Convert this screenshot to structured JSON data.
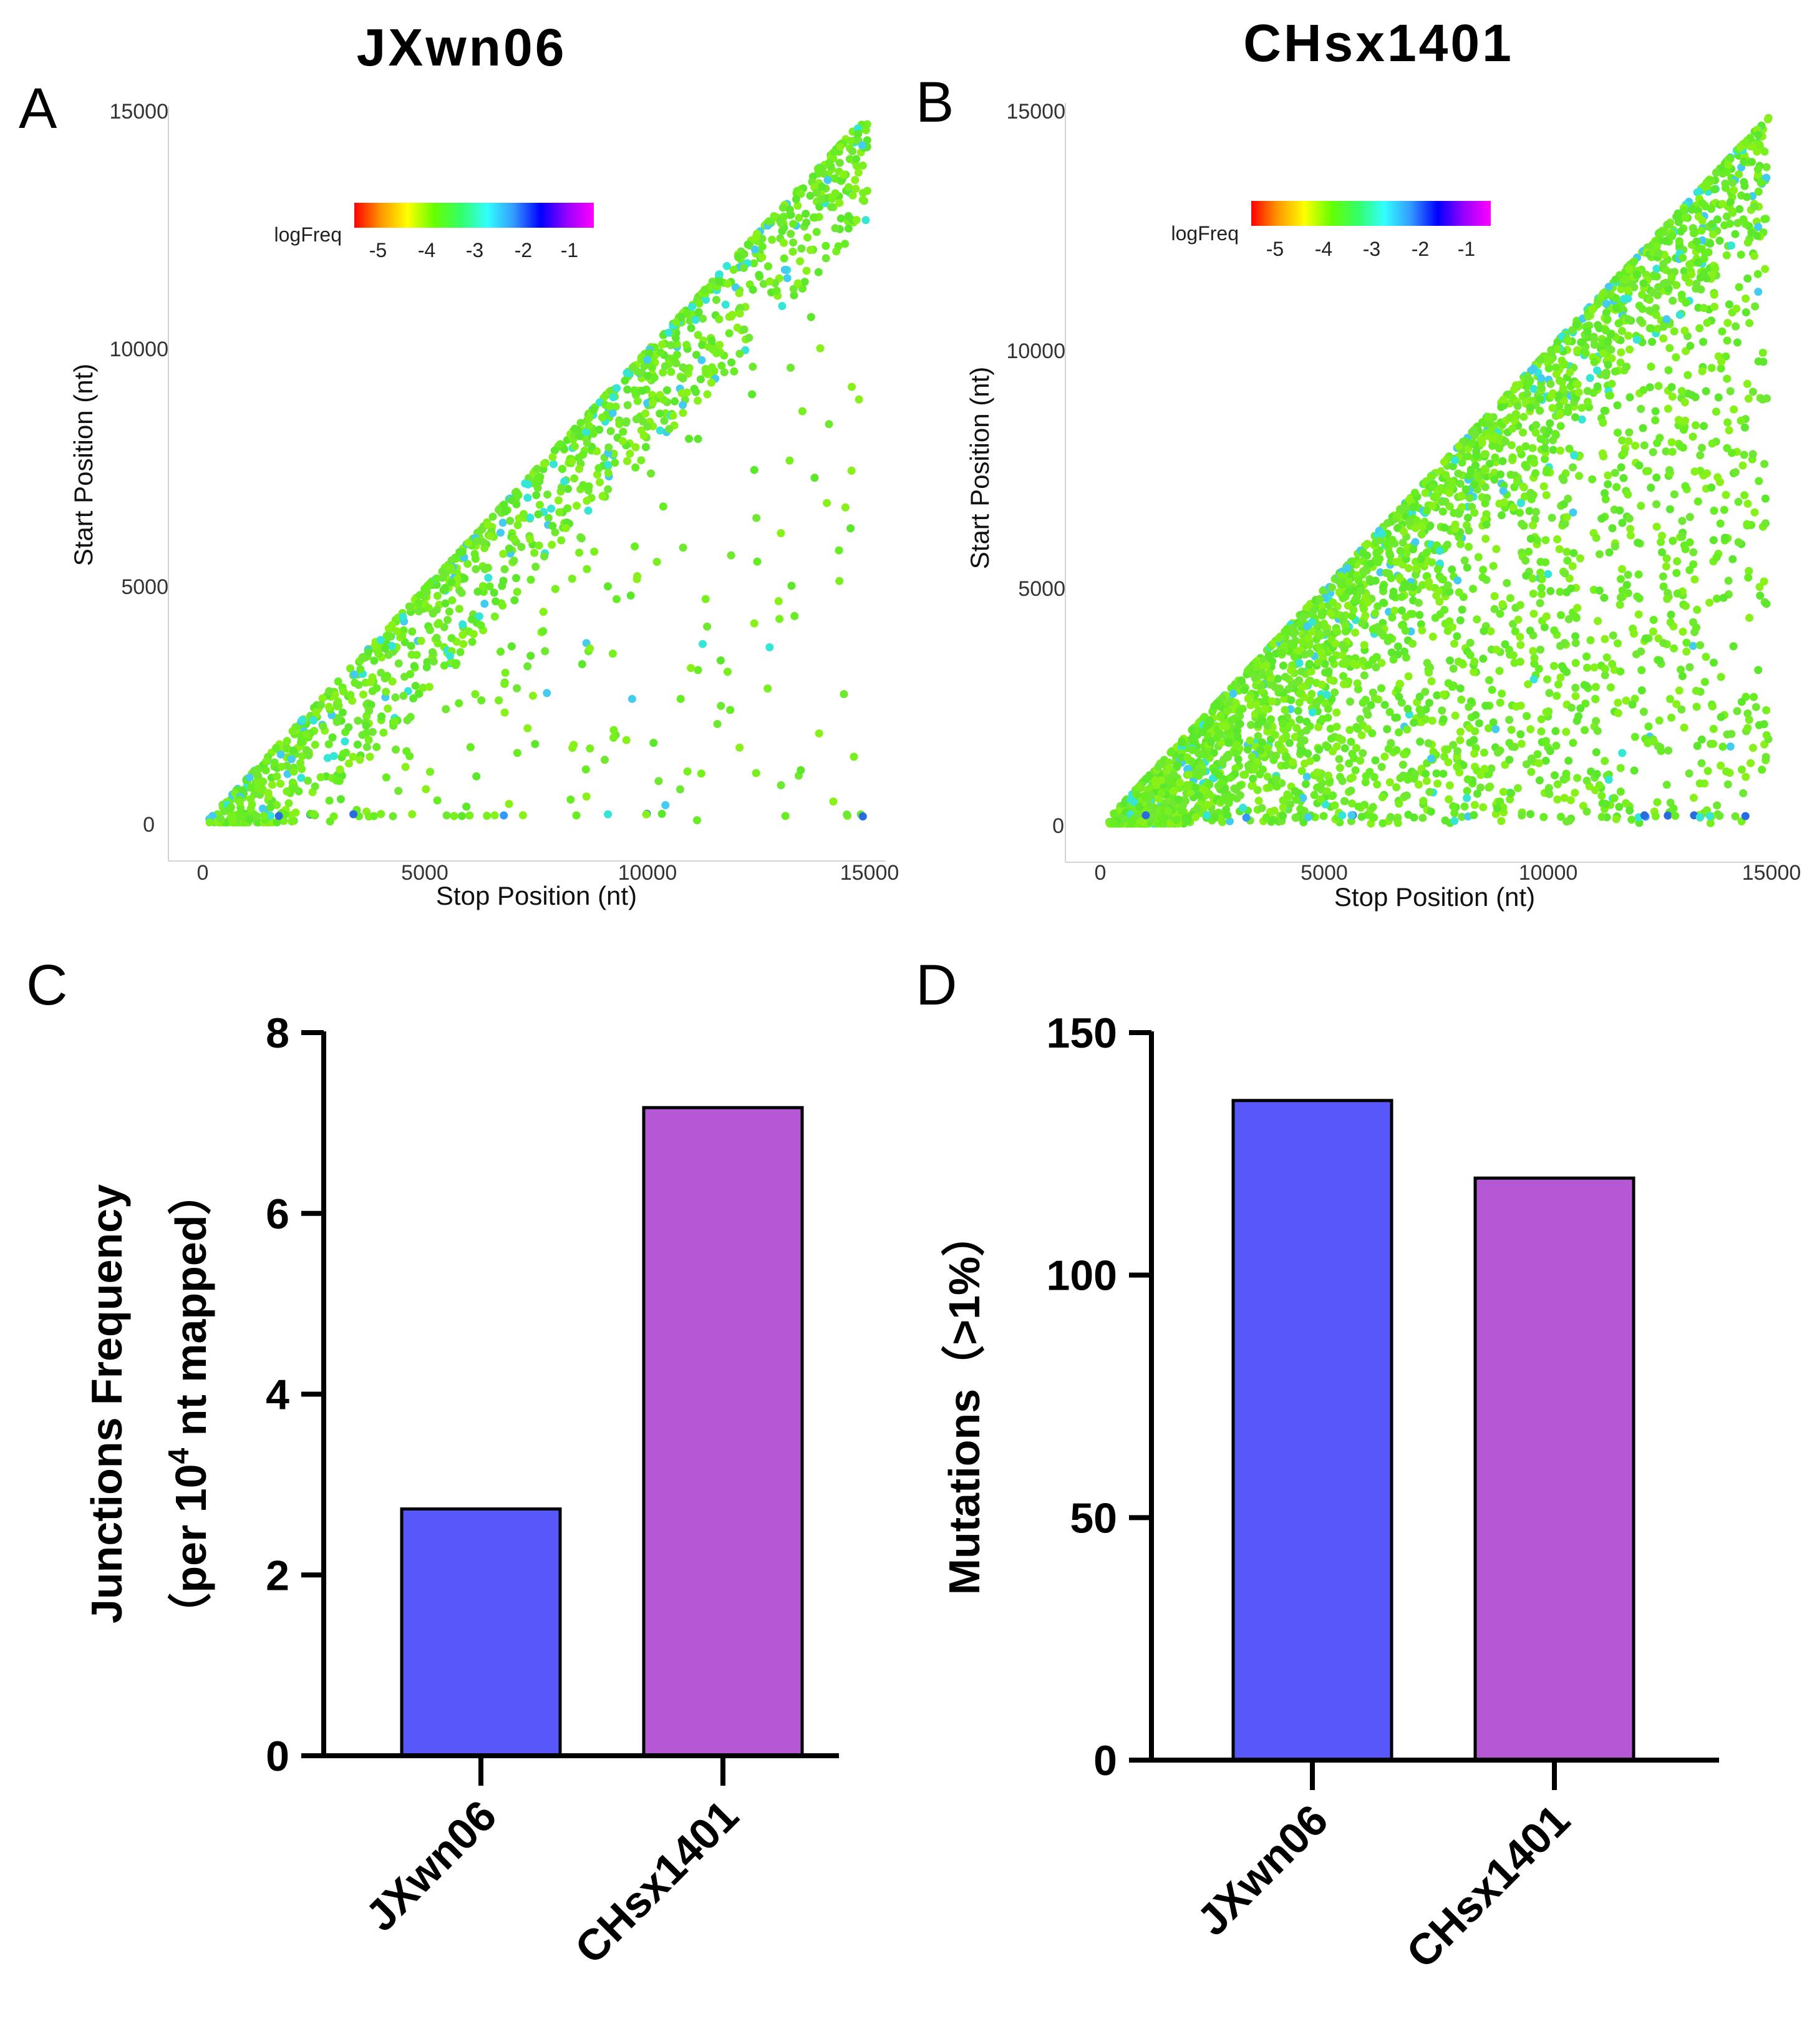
{
  "panels": {
    "A": {
      "letter": "A",
      "title": "JXwn06"
    },
    "B": {
      "letter": "B",
      "title": "CHsx1401"
    },
    "C": {
      "letter": "C"
    },
    "D": {
      "letter": "D"
    }
  },
  "colorbar": {
    "label": "logFreq",
    "ticks": [
      "-5",
      "-4",
      "-3",
      "-2",
      "-1"
    ],
    "stops": [
      "#ff0000",
      "#ff9900",
      "#ffff00",
      "#66ff00",
      "#33ff66",
      "#33ffff",
      "#3399ff",
      "#0000ff",
      "#9900ff",
      "#ff00ff"
    ]
  },
  "colors": {
    "blue_bar": "#5858fa",
    "purple_bar": "#b657d6",
    "green_point": "#66ee22"
  },
  "chart_data": [
    {
      "id": "A",
      "type": "scatter",
      "title": "JXwn06",
      "xlabel": "Stop Position (nt)",
      "ylabel": "Start Position (nt)",
      "xlim": [
        0,
        15000
      ],
      "ylim": [
        0,
        15000
      ],
      "xticks": [
        "0",
        "5000",
        "10000",
        "15000"
      ],
      "yticks": [
        "0",
        "5000",
        "10000",
        "15000"
      ],
      "color_scale": "logFreq",
      "description_points": "junction start vs stop positions, dense along diagonal"
    },
    {
      "id": "B",
      "type": "scatter",
      "title": "CHsx1401",
      "xlabel": "Stop Position (nt)",
      "ylabel": "Start Position (nt)",
      "xlim": [
        0,
        15000
      ],
      "ylim": [
        0,
        15000
      ],
      "xticks": [
        "0",
        "5000",
        "10000",
        "15000"
      ],
      "yticks": [
        "0",
        "5000",
        "10000",
        "15000"
      ],
      "color_scale": "logFreq",
      "description_points": "junction start vs stop positions, dense along diagonal and filling lower triangle"
    },
    {
      "id": "C",
      "type": "bar",
      "categories": [
        "JXwn06",
        "CHsx1401"
      ],
      "values": [
        2.73,
        7.17
      ],
      "ylim": [
        0,
        8
      ],
      "yticks": [
        "0",
        "2",
        "4",
        "6",
        "8"
      ],
      "ylabel_line1": "Junctions Frequency",
      "ylabel_line2_pre": "（per 10",
      "ylabel_line2_sup": "4",
      "ylabel_line2_post": " nt mapped）"
    },
    {
      "id": "D",
      "type": "bar",
      "categories": [
        "JXwn06",
        "CHsx1401"
      ],
      "values": [
        136,
        120
      ],
      "ylim": [
        0,
        150
      ],
      "yticks": [
        "0",
        "50",
        "100",
        "150"
      ],
      "ylabel": "Mutations（>1%）"
    }
  ]
}
